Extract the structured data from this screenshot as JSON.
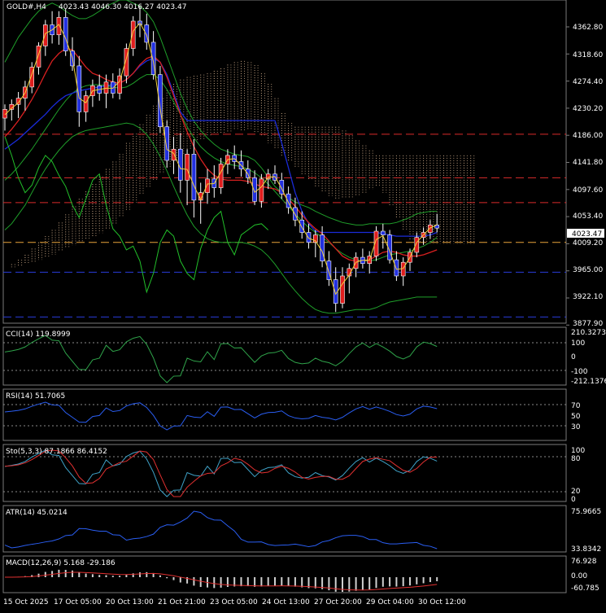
{
  "header": {
    "symbol": "GOLD#,H4",
    "ohlc": "4023.43 4046.30 4016.27 4023.47"
  },
  "price_panel": {
    "y_ticks": [
      "4362.80",
      "4318.60",
      "4274.40",
      "4230.20",
      "4186.00",
      "4141.80",
      "4097.60",
      "4053.40",
      "4009.20",
      "3965.00",
      "3922.10",
      "3877.90"
    ],
    "last_price": "4023.47",
    "ylim": [
      3870,
      4390
    ],
    "h_lines": [
      {
        "price": 4174,
        "color": "#d92b2b",
        "style": "dashed"
      },
      {
        "price": 4104,
        "color": "#d92b2b",
        "style": "dashed"
      },
      {
        "price": 4064,
        "color": "#d92b2b",
        "style": "dashed"
      },
      {
        "price": 4000,
        "color": "#e8a33a",
        "style": "dashed"
      },
      {
        "price": 3952,
        "color": "#2a3bd9",
        "style": "dashed"
      },
      {
        "price": 3880,
        "color": "#2a3bd9",
        "style": "dashed"
      }
    ]
  },
  "indicators": {
    "cci": {
      "label": "CCI(14) 119.8999",
      "ticks": [
        "210.3273",
        "100",
        "0",
        "-100",
        "-212.1376"
      ]
    },
    "rsi": {
      "label": "RSI(14) 51.7065",
      "ticks": [
        "70",
        "50",
        "30"
      ]
    },
    "sto": {
      "label": "Sto(5,3,3) 87.1866 86.4152",
      "ticks": [
        "100",
        "80",
        "20",
        "0"
      ]
    },
    "atr": {
      "label": "ATR(14) 45.0214",
      "ticks": [
        "75.9665",
        "33.8342"
      ]
    },
    "macd": {
      "label": "MACD(12,26,9) 5.168 -29.186",
      "ticks": [
        "76.928",
        "0.00",
        "-60.785"
      ]
    }
  },
  "x_labels": [
    "15 Oct 2025",
    "17 Oct 05:00",
    "20 Oct 13:00",
    "21 Oct 21:00",
    "23 Oct 05:00",
    "24 Oct 13:00",
    "27 Oct 20:00",
    "29 Oct 04:00",
    "30 Oct 12:00"
  ],
  "colors": {
    "bull": "#e01e1e",
    "bear": "#2230e0",
    "cloud": "#f0c8a0",
    "grid": "#7a7a7a"
  },
  "chart_data": {
    "type": "candlestick",
    "title": "GOLD#,H4",
    "ylim": [
      3870,
      4390
    ],
    "candles": [
      [
        4200,
        4222,
        4180,
        4214
      ],
      [
        4214,
        4230,
        4196,
        4222
      ],
      [
        4222,
        4242,
        4200,
        4232
      ],
      [
        4232,
        4260,
        4212,
        4250
      ],
      [
        4250,
        4290,
        4240,
        4282
      ],
      [
        4282,
        4322,
        4270,
        4316
      ],
      [
        4316,
        4358,
        4300,
        4350
      ],
      [
        4350,
        4372,
        4320,
        4334
      ],
      [
        4334,
        4372,
        4318,
        4362
      ],
      [
        4362,
        4376,
        4300,
        4308
      ],
      [
        4308,
        4330,
        4276,
        4284
      ],
      [
        4284,
        4300,
        4186,
        4210
      ],
      [
        4210,
        4244,
        4194,
        4236
      ],
      [
        4236,
        4262,
        4218,
        4252
      ],
      [
        4252,
        4270,
        4228,
        4240
      ],
      [
        4240,
        4270,
        4216,
        4258
      ],
      [
        4258,
        4272,
        4232,
        4240
      ],
      [
        4240,
        4280,
        4230,
        4268
      ],
      [
        4268,
        4320,
        4256,
        4312
      ],
      [
        4312,
        4364,
        4300,
        4356
      ],
      [
        4356,
        4380,
        4330,
        4350
      ],
      [
        4350,
        4368,
        4310,
        4322
      ],
      [
        4322,
        4340,
        4262,
        4270
      ],
      [
        4270,
        4284,
        4176,
        4186
      ],
      [
        4186,
        4196,
        4120,
        4132
      ],
      [
        4132,
        4170,
        4110,
        4150
      ],
      [
        4150,
        4176,
        4080,
        4100
      ],
      [
        4100,
        4150,
        4060,
        4142
      ],
      [
        4142,
        4166,
        4040,
        4068
      ],
      [
        4068,
        4096,
        4030,
        4080
      ],
      [
        4080,
        4118,
        4062,
        4102
      ],
      [
        4102,
        4124,
        4072,
        4088
      ],
      [
        4088,
        4136,
        4078,
        4126
      ],
      [
        4126,
        4150,
        4110,
        4140
      ],
      [
        4140,
        4156,
        4118,
        4130
      ],
      [
        4130,
        4148,
        4106,
        4118
      ],
      [
        4118,
        4132,
        4094,
        4104
      ],
      [
        4104,
        4116,
        4060,
        4066
      ],
      [
        4066,
        4110,
        4056,
        4102
      ],
      [
        4102,
        4118,
        4086,
        4110
      ],
      [
        4110,
        4124,
        4094,
        4100
      ],
      [
        4100,
        4112,
        4070,
        4078
      ],
      [
        4078,
        4090,
        4046,
        4056
      ],
      [
        4056,
        4072,
        4026,
        4036
      ],
      [
        4036,
        4050,
        4006,
        4016
      ],
      [
        4016,
        4030,
        3990,
        4000
      ],
      [
        4000,
        4020,
        3976,
        4012
      ],
      [
        4012,
        4026,
        3960,
        3970
      ],
      [
        3970,
        3986,
        3930,
        3940
      ],
      [
        3940,
        3960,
        3888,
        3902
      ],
      [
        3902,
        3960,
        3894,
        3946
      ],
      [
        3946,
        3966,
        3918,
        3958
      ],
      [
        3958,
        3984,
        3944,
        3976
      ],
      [
        3976,
        3990,
        3958,
        3966
      ],
      [
        3966,
        3986,
        3950,
        3978
      ],
      [
        3978,
        4026,
        3970,
        4018
      ],
      [
        4018,
        4030,
        3990,
        4012
      ],
      [
        4012,
        4020,
        3966,
        3972
      ],
      [
        3972,
        3986,
        3938,
        3946
      ],
      [
        3946,
        3976,
        3930,
        3968
      ],
      [
        3968,
        3990,
        3954,
        3984
      ],
      [
        3984,
        4016,
        3976,
        4008
      ],
      [
        4008,
        4024,
        3996,
        4016
      ],
      [
        4016,
        4036,
        4006,
        4028
      ],
      [
        4028,
        4046,
        4016,
        4023
      ]
    ],
    "cloud_lines": {
      "upper": [
        3960,
        3965,
        3972,
        3980,
        3990,
        4000,
        4010,
        4020,
        4032,
        4045,
        4058,
        4070,
        4082,
        4094,
        4106,
        4118,
        4130,
        4142,
        4160,
        4175,
        4190,
        4205,
        4220,
        4232,
        4245,
        4255,
        4262,
        4266,
        4268,
        4270,
        4272,
        4276,
        4280,
        4286,
        4290,
        4292,
        4290,
        4285,
        4272,
        4255,
        4232,
        4208,
        4192,
        4186,
        4186,
        4186,
        4186,
        4186,
        4186,
        4186,
        4180,
        4172,
        4164,
        4156,
        4148,
        4140,
        4140,
        4140,
        4140,
        4140,
        4140,
        4140,
        4140,
        4140,
        4140,
        4140,
        4140,
        4140,
        4140,
        4140
      ],
      "lower": [
        3960,
        3960,
        3962,
        3965,
        3968,
        3972,
        3976,
        3980,
        3985,
        3990,
        3995,
        4000,
        4005,
        4010,
        4015,
        4020,
        4030,
        4040,
        4052,
        4064,
        4076,
        4088,
        4100,
        4110,
        4120,
        4130,
        4140,
        4150,
        4160,
        4166,
        4170,
        4174,
        4176,
        4178,
        4180,
        4180,
        4180,
        4176,
        4170,
        4160,
        4150,
        4140,
        4130,
        4120,
        4110,
        4100,
        4090,
        4080,
        4075,
        4070,
        4070,
        4072,
        4075,
        4080,
        4085,
        4090,
        4080,
        4060,
        4040,
        4020,
        4005,
        4000,
        3998,
        3998,
        3998,
        3998,
        3998,
        3998,
        3998,
        3998
      ]
    },
    "bands": {
      "upper": [
        4290,
        4310,
        4330,
        4345,
        4360,
        4372,
        4380,
        4385,
        4380,
        4372,
        4365,
        4360,
        4360,
        4365,
        4372,
        4380,
        4385,
        4390,
        4390,
        4385,
        4380,
        4370,
        4355,
        4330,
        4300,
        4270,
        4240,
        4215,
        4195,
        4180,
        4168,
        4158,
        4150,
        4146,
        4142,
        4140,
        4138,
        4132,
        4120,
        4105,
        4090,
        4080,
        4072,
        4065,
        4060,
        4056,
        4050,
        4045,
        4040,
        4036,
        4032,
        4030,
        4028,
        4028,
        4030,
        4030,
        4030,
        4030,
        4032,
        4036,
        4040,
        4046,
        4048,
        4050,
        4050
      ],
      "lower": [
        4020,
        4030,
        4045,
        4060,
        4080,
        4100,
        4118,
        4134,
        4148,
        4160,
        4170,
        4176,
        4180,
        4182,
        4184,
        4186,
        4188,
        4190,
        4192,
        4190,
        4184,
        4174,
        4158,
        4138,
        4115,
        4090,
        4066,
        4044,
        4026,
        4014,
        4006,
        4002,
        4000,
        4000,
        4000,
        4000,
        3998,
        3994,
        3988,
        3978,
        3965,
        3950,
        3935,
        3922,
        3910,
        3900,
        3892,
        3888,
        3886,
        3886,
        3888,
        3890,
        3892,
        3892,
        3892,
        3895,
        3900,
        3904,
        3906,
        3908,
        3910,
        3912,
        3912,
        3912,
        3912
      ]
    },
    "ma_red": [
      4170,
      4182,
      4196,
      4212,
      4230,
      4250,
      4272,
      4292,
      4304,
      4312,
      4310,
      4296,
      4282,
      4272,
      4268,
      4262,
      4258,
      4256,
      4262,
      4272,
      4286,
      4296,
      4300,
      4290,
      4266,
      4236,
      4206,
      4178,
      4154,
      4134,
      4118,
      4108,
      4102,
      4100,
      4100,
      4100,
      4098,
      4094,
      4090,
      4088,
      4086,
      4080,
      4070,
      4058,
      4044,
      4032,
      4022,
      4014,
      4002,
      3990,
      3978,
      3972,
      3970,
      3970,
      3972,
      3978,
      3984,
      3986,
      3984,
      3980,
      3978,
      3978,
      3980,
      3984,
      3988
    ],
    "ma_blue": [
      4150,
      4158,
      4166,
      4176,
      4186,
      4196,
      4206,
      4218,
      4228,
      4236,
      4240,
      4244,
      4246,
      4248,
      4250,
      4252,
      4254,
      4256,
      4262,
      4272,
      4284,
      4292,
      4296,
      4290,
      4270,
      4240,
      4210,
      4196,
      4196,
      4196,
      4196,
      4196,
      4196,
      4196,
      4196,
      4196,
      4196,
      4196,
      4196,
      4196,
      4196,
      4160,
      4120,
      4080,
      4050,
      4030,
      4018,
      4016,
      4016,
      4016,
      4016,
      4016,
      4016,
      4016,
      4016,
      4016,
      4014,
      4012,
      4010,
      4010,
      4010,
      4010,
      4010,
      4012,
      4016
    ],
    "ma_green_thin": [
      4100,
      4110,
      4122,
      4136,
      4150,
      4166,
      4182,
      4198,
      4214,
      4228,
      4240,
      4248,
      4252,
      4254,
      4254,
      4252,
      4250,
      4248,
      4250,
      4256,
      4264,
      4270,
      4270,
      4262,
      4246,
      4226,
      4206,
      4186,
      4168,
      4154,
      4144,
      4136,
      4130,
      4126,
      4124,
      4122,
      4118,
      4112,
      4104,
      4094,
      4082,
      4070,
      4058,
      4046,
      4034,
      4024,
      4016,
      4008,
      4000,
      3990,
      3982,
      3976,
      3972,
      3970,
      3970,
      3972,
      3976,
      3980,
      3982,
      3984,
      3986,
      3990,
      3994,
      4000,
      4008
    ],
    "chikou": [
      4170,
      4140,
      4104,
      4080,
      4092,
      4120,
      4140,
      4130,
      4108,
      4090,
      4060,
      4040,
      4070,
      4100,
      4110,
      4060,
      4022,
      4010,
      3988,
      3994,
      3970,
      3920,
      3950,
      4000,
      4020,
      4010,
      3970,
      3950,
      3940,
      3990,
      4020,
      4040,
      4050,
      4000,
      3980,
      4012,
      4020,
      4028,
      4030,
      4020
    ]
  }
}
